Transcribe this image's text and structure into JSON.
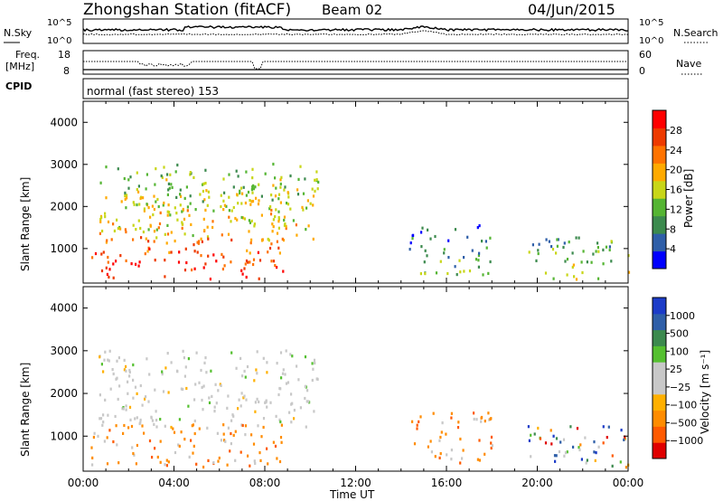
{
  "header": {
    "station": "Zhongshan Station (fitACF)",
    "beam": "Beam 02",
    "date": "04/Jun/2015"
  },
  "noise_panel": {
    "left_label": "N.Sky",
    "right_label": "N.Search",
    "left_ticks": [
      "10^5",
      "10^0"
    ],
    "right_ticks": [
      "10^5",
      "10^0"
    ]
  },
  "freq_panel": {
    "left_label_top": "Freq.",
    "left_label_unit": "[MHz]",
    "right_label": "Nave",
    "left_ticks": [
      "18",
      "8"
    ],
    "right_ticks": [
      "60",
      "0"
    ]
  },
  "cpid_panel": {
    "label": "CPID",
    "text": "normal (fast stereo) 153"
  },
  "colors": {
    "power_scale": [
      "#0000ff",
      "#2f5fa8",
      "#3c8a4e",
      "#55b533",
      "#c8d618",
      "#ffaa00",
      "#ff7300",
      "#ee3a00",
      "#ff0000"
    ],
    "velocity_scale": [
      "#e00000",
      "#ff5a00",
      "#ff8c00",
      "#ffb000",
      "#c8c8c8",
      "#c8c8c8",
      "#55c030",
      "#3c8a4e",
      "#2f5fa8",
      "#1c3cc8"
    ]
  },
  "chart_data": [
    {
      "type": "heatmap",
      "title": "",
      "xlabel": "",
      "ylabel": "Slant Range [km]",
      "xlim": [
        "00:00",
        "24:00"
      ],
      "ylim": [
        180,
        4500
      ],
      "y_ticks": [
        "1000",
        "2000",
        "3000",
        "4000"
      ],
      "colorbar": {
        "label": "Power [dB]",
        "range": [
          0,
          30
        ],
        "ticks": [
          "4",
          "8",
          "12",
          "16",
          "20",
          "24",
          "28"
        ]
      },
      "echo_regions": [
        {
          "t_start": "00:40",
          "t_end": "10:20",
          "range_start": 1200,
          "range_end": 3050,
          "dominant": "12-16 dB"
        },
        {
          "t_start": "01:30",
          "t_end": "09:30",
          "range_start": 1500,
          "range_end": 2600,
          "dominant": "12-20 dB"
        },
        {
          "t_start": "00:20",
          "t_end": "09:00",
          "range_start": 300,
          "range_end": 1300,
          "dominant": "16-28 dB"
        },
        {
          "t_start": "14:20",
          "t_end": "18:00",
          "range_start": 400,
          "range_end": 1600,
          "dominant": "4-12 dB"
        },
        {
          "t_start": "19:30",
          "t_end": "24:00",
          "range_start": 300,
          "range_end": 1300,
          "dominant": "8-16 dB"
        }
      ]
    },
    {
      "type": "heatmap",
      "title": "",
      "xlabel": "Time UT",
      "ylabel": "Slant Range [km]",
      "xlim": [
        "00:00",
        "24:00"
      ],
      "ylim": [
        180,
        4500
      ],
      "x_ticks": [
        "00:00",
        "04:00",
        "08:00",
        "12:00",
        "16:00",
        "20:00",
        "00:00"
      ],
      "y_ticks": [
        "1000",
        "2000",
        "3000",
        "4000"
      ],
      "colorbar": {
        "label": "Velocity [m s⁻¹]",
        "range": [
          -1200,
          1200
        ],
        "ticks": [
          "1000",
          "500",
          "100",
          "25",
          "−25",
          "−100",
          "−500",
          "−1000"
        ]
      },
      "echo_regions": [
        {
          "t_start": "00:40",
          "t_end": "10:20",
          "range_start": 1200,
          "range_end": 3050,
          "dominant": "-25 to 25 m/s (ground scatter)"
        },
        {
          "t_start": "00:20",
          "t_end": "09:00",
          "range_start": 300,
          "range_end": 1300,
          "dominant": "-500 to -100 m/s"
        },
        {
          "t_start": "14:20",
          "t_end": "18:00",
          "range_start": 400,
          "range_end": 1600,
          "dominant": "-500 to -100 m/s"
        },
        {
          "t_start": "19:30",
          "t_end": "24:00",
          "range_start": 300,
          "range_end": 1300,
          "dominant": "-500 to 500 m/s"
        }
      ]
    }
  ]
}
